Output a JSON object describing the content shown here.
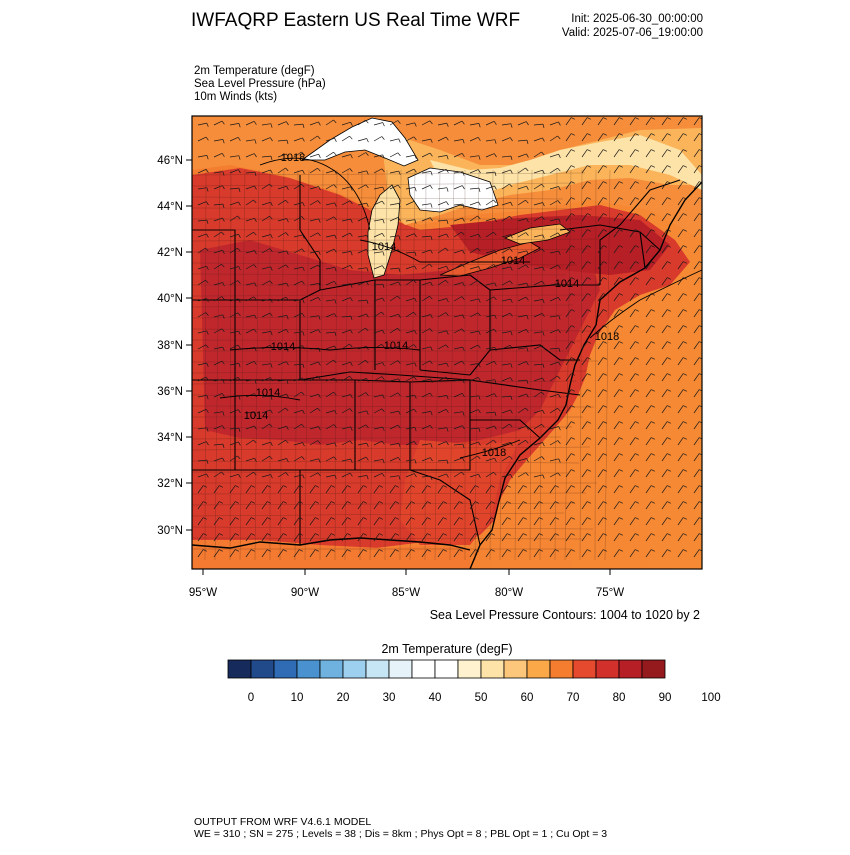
{
  "header": {
    "title": "IWFAQRP Eastern US Real Time WRF",
    "init": "Init: 2025-06-30_00:00:00",
    "valid": "Valid: 2025-07-06_19:00:00"
  },
  "fields": [
    "2m Temperature   (degF)",
    "Sea Level Pressure   (hPa)",
    "10m Winds   (kts)"
  ],
  "map": {
    "lat_labels": [
      "46°N",
      "44°N",
      "42°N",
      "40°N",
      "38°N",
      "36°N",
      "34°N",
      "32°N",
      "30°N"
    ],
    "lon_labels": [
      "95°W",
      "90°W",
      "85°W",
      "80°W",
      "75°W"
    ],
    "isobar_labels": [
      "1018",
      "1014",
      "1014",
      "1014",
      "1014",
      "1014",
      "1014",
      "1014",
      "1018",
      "1018"
    ],
    "colors": {
      "hot": "#c0272d",
      "warm": "#e64a2e",
      "orange": "#f47d30",
      "light": "#fde3a7",
      "white": "#ffffff"
    }
  },
  "contour_note": "Sea Level Pressure Contours: 1004 to 1020 by 2",
  "colorbar": {
    "title": "2m Temperature  (degF)",
    "labels": [
      "0",
      "10",
      "20",
      "30",
      "40",
      "50",
      "60",
      "70",
      "80",
      "90",
      "100"
    ],
    "colors": [
      "#172a5c",
      "#214a8a",
      "#2f6cb5",
      "#4a92cf",
      "#6fb2e0",
      "#9cd0ee",
      "#c6e6f5",
      "#e6f4fa",
      "#ffffff",
      "#ffffff",
      "#fff2cf",
      "#fde3a7",
      "#fcc77a",
      "#fba849",
      "#f47d30",
      "#e64a2e",
      "#d2302a",
      "#b71f26",
      "#951a1d"
    ]
  },
  "footer": {
    "line1": "OUTPUT FROM WRF V4.6.1 MODEL",
    "line2": "WE = 310 ; SN = 275 ; Levels = 38 ; Dis = 8km ; Phys Opt = 8 ; PBL Opt = 1 ; Cu Opt = 3"
  }
}
